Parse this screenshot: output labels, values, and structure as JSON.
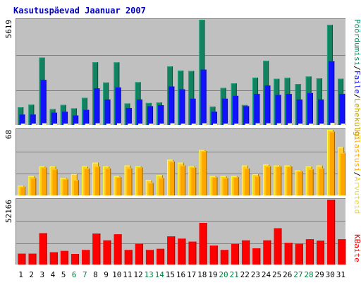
{
  "chart_data": {
    "type": "bar",
    "title": "Kasutuspäevad Jaanuar 2007",
    "x": [
      "1",
      "2",
      "3",
      "4",
      "5",
      "6",
      "7",
      "8",
      "9",
      "10",
      "11",
      "12",
      "13",
      "14",
      "15",
      "16",
      "17",
      "18",
      "19",
      "20",
      "21",
      "22",
      "23",
      "24",
      "25",
      "26",
      "27",
      "28",
      "29",
      "30",
      "31"
    ],
    "weekend_days": [
      "6",
      "7",
      "13",
      "14",
      "20",
      "21",
      "27",
      "28"
    ],
    "grid": true,
    "colors": {
      "background": "#ffffff",
      "plot_background": "#c0c0c0",
      "title": "#0000c0",
      "weekday_label": "#000000",
      "weekend_label": "#008040",
      "pagecount": "#138261",
      "files": "#1212ff",
      "hits": "#ffff99",
      "sites": "#ffa500",
      "visits": "#ffcc33",
      "kbytes": "#ff0000"
    },
    "panels": [
      {
        "id": "top",
        "ymax_label": "5619",
        "ymax": 5619,
        "series": [
          {
            "name": "Pöördumisi",
            "key": "hits",
            "values": [
              940,
              1079,
              3600,
              838,
              1066,
              887,
              1445,
              3347,
              2266,
              3343,
              1151,
              2285,
              1172,
              1194,
              3123,
              2898,
              2880,
              5619,
              973,
              1973,
              2217,
              1061,
              2522,
              3423,
              2461,
              2514,
              2187,
              2587,
              2488,
              5347,
              2466
            ]
          },
          {
            "name": "Faile",
            "key": "files",
            "values": [
              550,
              550,
              2400,
              650,
              700,
              500,
              800,
              1950,
              1350,
              2000,
              900,
              1350,
              1000,
              1050,
              2050,
              1900,
              1400,
              2950,
              700,
              1400,
              1550,
              1000,
              1650,
              2100,
              1600,
              1650,
              1350,
              1700,
              1350,
              3400,
              1650
            ]
          },
          {
            "name": "Lehekülgi",
            "key": "pages",
            "values": [
              60,
              60,
              80,
              60,
              60,
              60,
              60,
              80,
              60,
              80,
              60,
              60,
              60,
              60,
              80,
              60,
              60,
              80,
              60,
              60,
              60,
              60,
              80,
              80,
              80,
              80,
              60,
              60,
              60,
              100,
              60
            ]
          }
        ]
      },
      {
        "id": "middle",
        "ymax_label": "68",
        "ymax": 68,
        "series": [
          {
            "name": "Külastusi",
            "key": "visits",
            "values": [
              10,
              20,
              30,
              30,
              18,
              22,
              30,
              34,
              30,
              20,
              31,
              30,
              16,
              21,
              37,
              34,
              30,
              47,
              20,
              20,
              20,
              31,
              22,
              32,
              31,
              31,
              26,
              30,
              31,
              68,
              50
            ]
          },
          {
            "name": "Arvuteid",
            "key": "sites",
            "values": [
              9,
              18,
              29,
              27,
              17,
              16,
              28,
              30,
              28,
              19,
              28,
              29,
              13,
              18,
              35,
              31,
              29,
              46,
              19,
              18,
              19,
              28,
              20,
              30,
              30,
              30,
              25,
              27,
              28,
              66,
              44
            ]
          }
        ]
      },
      {
        "id": "bottom",
        "ymax_label": "52166",
        "ymax": 52166,
        "series": [
          {
            "name": "KBaite",
            "key": "kbytes",
            "values": [
              8700,
              8700,
              25200,
              9900,
              10900,
              8500,
              11700,
              24900,
              19400,
              24300,
              11700,
              16700,
              11700,
              12600,
              22600,
              20800,
              18400,
              33400,
              15200,
              11700,
              16500,
              19400,
              13000,
              19400,
              29200,
              17400,
              16700,
              20300,
              19200,
              52166,
              20300
            ]
          }
        ]
      }
    ],
    "legend": {
      "top": [
        "Pöördumisi",
        "/",
        "Faile",
        "/",
        "Lehekülgi"
      ],
      "middle": [
        "Külastusi",
        "/",
        "Arvuteid"
      ],
      "bottom": [
        "KBaite"
      ]
    }
  }
}
